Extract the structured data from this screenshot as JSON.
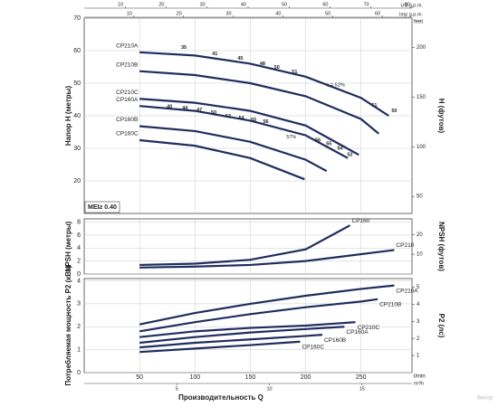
{
  "chart_data": [
    {
      "type": "line",
      "ylabel": "Напор H (метры)",
      "y2label": "H (футов)",
      "y2unit": "feet",
      "xlim": [
        0,
        296
      ],
      "ylim": [
        10,
        70
      ],
      "yticks": [
        20,
        30,
        40,
        50,
        60,
        70
      ],
      "y2lim": [
        32.81,
        229.67
      ],
      "y2ticks": [
        50,
        100,
        150,
        200
      ],
      "grid": true,
      "color": "#1f2d5e",
      "top_axes": [
        {
          "unit": "US g.p.m.",
          "lim": [
            0,
            80
          ],
          "ticks": [
            10,
            20,
            30,
            40,
            50,
            60,
            70,
            80
          ]
        },
        {
          "unit": "Imp g.p.m.",
          "lim": [
            0,
            66
          ],
          "ticks": [
            10,
            20,
            30,
            40,
            50,
            60
          ]
        }
      ],
      "series": [
        {
          "name": "CP210A",
          "x": [
            50,
            100,
            150,
            200,
            250,
            275
          ],
          "values": [
            59.5,
            58.5,
            56,
            52,
            45.5,
            40
          ]
        },
        {
          "name": "CP210B",
          "x": [
            50,
            100,
            150,
            200,
            250,
            266
          ],
          "values": [
            53.7,
            52.5,
            50,
            46,
            39,
            34.5
          ]
        },
        {
          "name": "CP210C",
          "x": [
            50,
            100,
            150,
            200,
            248
          ],
          "values": [
            45.2,
            44,
            41.5,
            37,
            28
          ]
        },
        {
          "name": "CP160A",
          "x": [
            50,
            100,
            150,
            200,
            238
          ],
          "values": [
            43,
            41.5,
            38.5,
            34,
            27
          ]
        },
        {
          "name": "CP160B",
          "x": [
            50,
            100,
            150,
            200,
            219
          ],
          "values": [
            36.8,
            35.3,
            32,
            26.5,
            23
          ]
        },
        {
          "name": "CP160C",
          "x": [
            50,
            100,
            150,
            199
          ],
          "values": [
            32.5,
            30.8,
            27,
            20.5
          ]
        }
      ],
      "efficiency_labels": [
        {
          "value": 35,
          "x": 90,
          "y": 61
        },
        {
          "value": 41,
          "x": 118,
          "y": 59
        },
        {
          "value": 45,
          "x": 141,
          "y": 57.6
        },
        {
          "value": 48,
          "x": 161,
          "y": 55.9
        },
        {
          "value": 50,
          "x": 174,
          "y": 54.8
        },
        {
          "value": 51,
          "x": 190,
          "y": 53.4
        },
        {
          "value": 51,
          "x": 262,
          "y": 43.2
        },
        {
          "value": 50,
          "x": 280,
          "y": 41.5
        },
        {
          "value": 40,
          "x": 77,
          "y": 42.7
        },
        {
          "value": 44,
          "x": 91,
          "y": 42.4
        },
        {
          "value": 47,
          "x": 104,
          "y": 41.8
        },
        {
          "value": 50,
          "x": 117,
          "y": 41
        },
        {
          "value": 52,
          "x": 130,
          "y": 39.9
        },
        {
          "value": 54,
          "x": 142,
          "y": 39.3
        },
        {
          "value": 55,
          "x": 153,
          "y": 38.7
        },
        {
          "value": 56,
          "x": 164,
          "y": 38.2
        },
        {
          "value": 56,
          "x": 211,
          "y": 32.5
        },
        {
          "value": 55,
          "x": 221,
          "y": 31.4
        },
        {
          "value": 54,
          "x": 231,
          "y": 30
        },
        {
          "value": 52,
          "x": 240,
          "y": 28
        }
      ],
      "annotations": [
        {
          "text": "η = 52%",
          "x": 227,
          "y": 49.4
        },
        {
          "text": "57%",
          "x": 187,
          "y": 33.4
        }
      ],
      "badge": "MEI≥ 0.40"
    },
    {
      "type": "line",
      "ylabel": "NPSH (метры)",
      "y2label": "NPSH (футов)",
      "xlim": [
        0,
        296
      ],
      "ylim": [
        0,
        8.5
      ],
      "yticks": [
        0,
        2,
        4,
        6,
        8
      ],
      "y2lim": [
        0,
        27.9
      ],
      "y2ticks": [
        10,
        20
      ],
      "grid": true,
      "color": "#1f2d5e",
      "series": [
        {
          "name": "CP160",
          "x": [
            50,
            100,
            150,
            200,
            240
          ],
          "values": [
            1.4,
            1.6,
            2.2,
            3.8,
            7.5
          ]
        },
        {
          "name": "CP210",
          "x": [
            50,
            100,
            150,
            200,
            280
          ],
          "values": [
            1.0,
            1.15,
            1.4,
            2.0,
            3.7
          ]
        }
      ]
    },
    {
      "type": "line",
      "ylabel": "Потребляемая мощность P2 (кВт)",
      "y2label": "P2 (лс)",
      "xlim": [
        0,
        296
      ],
      "ylim": [
        0,
        4.1
      ],
      "yticks": [
        0,
        1,
        2,
        3,
        4
      ],
      "y2lim": [
        0,
        5.5
      ],
      "y2ticks": [
        1,
        2,
        3,
        4,
        5
      ],
      "grid": true,
      "color": "#1f2d5e",
      "xticks": [
        50,
        100,
        150,
        200,
        250
      ],
      "xunit": "l/min",
      "xlabel": "Производительность Q",
      "bottom_axis": {
        "unit": "m³/h",
        "lim": [
          0,
          17.7
        ],
        "ticks": [
          5,
          10,
          15
        ]
      },
      "series": [
        {
          "name": "CP210A",
          "x": [
            50,
            100,
            150,
            200,
            250,
            280
          ],
          "values": [
            2.1,
            2.6,
            3.0,
            3.35,
            3.65,
            3.8
          ]
        },
        {
          "name": "CP210B",
          "x": [
            50,
            100,
            150,
            200,
            250,
            265
          ],
          "values": [
            1.8,
            2.2,
            2.55,
            2.85,
            3.1,
            3.2
          ]
        },
        {
          "name": "CP210C",
          "x": [
            50,
            100,
            150,
            200,
            245
          ],
          "values": [
            1.55,
            1.8,
            1.95,
            2.05,
            2.2
          ]
        },
        {
          "name": "CP160A",
          "x": [
            50,
            100,
            150,
            200,
            235
          ],
          "values": [
            1.3,
            1.55,
            1.75,
            1.9,
            2.0
          ]
        },
        {
          "name": "CP160B",
          "x": [
            50,
            100,
            150,
            200,
            215
          ],
          "values": [
            1.1,
            1.3,
            1.45,
            1.6,
            1.65
          ]
        },
        {
          "name": "CP160C",
          "x": [
            50,
            100,
            150,
            195
          ],
          "values": [
            0.9,
            1.05,
            1.2,
            1.35
          ]
        }
      ]
    }
  ],
  "watermark": "Вихор"
}
